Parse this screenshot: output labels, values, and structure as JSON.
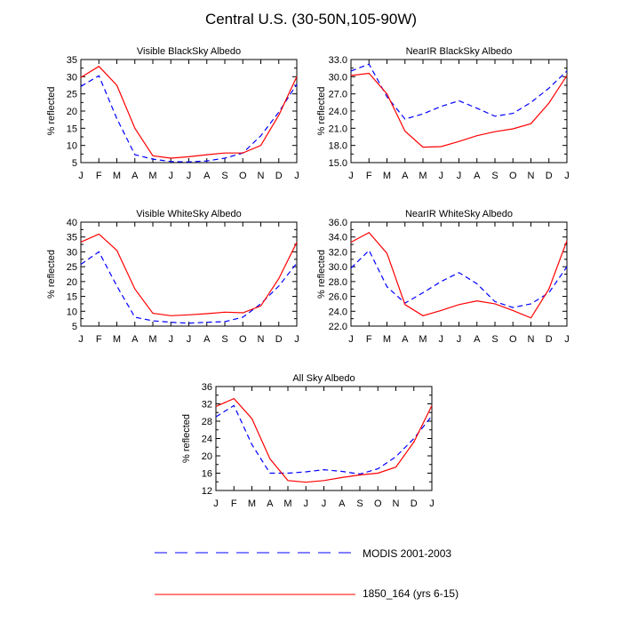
{
  "title": "Central U.S. (30-50N,105-90W)",
  "legend": [
    {
      "label": "MODIS 2001-2003",
      "color": "#0000ff",
      "dash": "dashed"
    },
    {
      "label": "1850_164 (yrs 6-15)",
      "color": "#ff0000",
      "dash": "solid"
    }
  ],
  "chart_data": [
    {
      "type": "line",
      "title": "Visible BlackSky Albedo",
      "ylabel": "% reflected",
      "x": [
        "J",
        "F",
        "M",
        "A",
        "M",
        "J",
        "J",
        "A",
        "S",
        "O",
        "N",
        "D",
        "J"
      ],
      "ylim": [
        5,
        35
      ],
      "yticks": [
        "5",
        "10",
        "15",
        "20",
        "25",
        "30",
        "35"
      ],
      "series": [
        {
          "name": "MODIS 2001-2003",
          "values": [
            27.2,
            30.3,
            17.8,
            7.3,
            6.0,
            5.3,
            5.2,
            5.5,
            6.3,
            7.8,
            12.8,
            19.7,
            27.8
          ]
        },
        {
          "name": "1850_164 (yrs 6-15)",
          "values": [
            29.8,
            33.0,
            27.5,
            15.0,
            7.0,
            6.3,
            6.7,
            7.3,
            7.8,
            7.8,
            10.0,
            18.8,
            30.0
          ]
        }
      ]
    },
    {
      "type": "line",
      "title": "NearIR BlackSky Albedo",
      "ylabel": "% reflected",
      "x": [
        "J",
        "F",
        "M",
        "A",
        "M",
        "J",
        "J",
        "A",
        "S",
        "O",
        "N",
        "D",
        "J"
      ],
      "ylim": [
        15,
        33
      ],
      "yticks": [
        "15.0",
        "18.0",
        "21.0",
        "24.0",
        "27.0",
        "30.0",
        "33.0"
      ],
      "series": [
        {
          "name": "MODIS 2001-2003",
          "values": [
            31.0,
            32.2,
            26.5,
            22.6,
            23.5,
            24.8,
            25.8,
            24.5,
            23.1,
            23.6,
            25.5,
            28.0,
            31.0
          ]
        },
        {
          "name": "1850_164 (yrs 6-15)",
          "values": [
            30.2,
            30.6,
            27.0,
            20.5,
            17.7,
            17.8,
            18.7,
            19.7,
            20.4,
            20.9,
            21.8,
            25.4,
            30.2
          ]
        }
      ]
    },
    {
      "type": "line",
      "title": "Visible WhiteSky Albedo",
      "ylabel": "% reflected",
      "x": [
        "J",
        "F",
        "M",
        "A",
        "M",
        "J",
        "J",
        "A",
        "S",
        "O",
        "N",
        "D",
        "J"
      ],
      "ylim": [
        5,
        40
      ],
      "yticks": [
        "5",
        "10",
        "15",
        "20",
        "25",
        "30",
        "35",
        "40"
      ],
      "series": [
        {
          "name": "MODIS 2001-2003",
          "values": [
            25.8,
            30.0,
            18.5,
            8.0,
            6.8,
            6.3,
            6.0,
            6.3,
            6.5,
            8.0,
            12.5,
            18.5,
            26.2
          ]
        },
        {
          "name": "1850_164 (yrs 6-15)",
          "values": [
            33.3,
            36.0,
            30.5,
            17.5,
            9.3,
            8.5,
            8.8,
            9.2,
            9.7,
            9.5,
            11.8,
            21.0,
            33.2
          ]
        }
      ]
    },
    {
      "type": "line",
      "title": "NearIR WhiteSky Albedo",
      "ylabel": "% reflected",
      "x": [
        "J",
        "F",
        "M",
        "A",
        "M",
        "J",
        "J",
        "A",
        "S",
        "O",
        "N",
        "D",
        "J"
      ],
      "ylim": [
        22,
        36
      ],
      "yticks": [
        "22.0",
        "24.0",
        "26.0",
        "28.0",
        "30.0",
        "32.0",
        "34.0",
        "36.0"
      ],
      "series": [
        {
          "name": "MODIS 2001-2003",
          "values": [
            29.8,
            32.2,
            27.3,
            25.1,
            26.5,
            28.0,
            29.2,
            27.7,
            25.3,
            24.5,
            25.0,
            26.5,
            30.0
          ]
        },
        {
          "name": "1850_164 (yrs 6-15)",
          "values": [
            33.3,
            34.6,
            31.8,
            24.9,
            23.4,
            24.1,
            24.9,
            25.4,
            25.0,
            24.1,
            23.1,
            27.0,
            33.5
          ]
        }
      ]
    },
    {
      "type": "line",
      "title": "All Sky Albedo",
      "ylabel": "% reflected",
      "x": [
        "J",
        "F",
        "M",
        "A",
        "M",
        "J",
        "J",
        "A",
        "S",
        "O",
        "N",
        "D",
        "J"
      ],
      "ylim": [
        12,
        36
      ],
      "yticks": [
        "12",
        "16",
        "20",
        "24",
        "28",
        "32",
        "36"
      ],
      "series": [
        {
          "name": "MODIS 2001-2003",
          "values": [
            29.0,
            31.6,
            22.6,
            16.0,
            16.0,
            16.3,
            16.8,
            16.4,
            15.8,
            17.0,
            19.8,
            24.0,
            29.2
          ]
        },
        {
          "name": "1850_164 (yrs 6-15)",
          "values": [
            31.4,
            33.2,
            28.6,
            19.3,
            14.3,
            13.9,
            14.3,
            15.0,
            15.6,
            16.0,
            17.4,
            23.2,
            31.6
          ]
        }
      ]
    }
  ]
}
